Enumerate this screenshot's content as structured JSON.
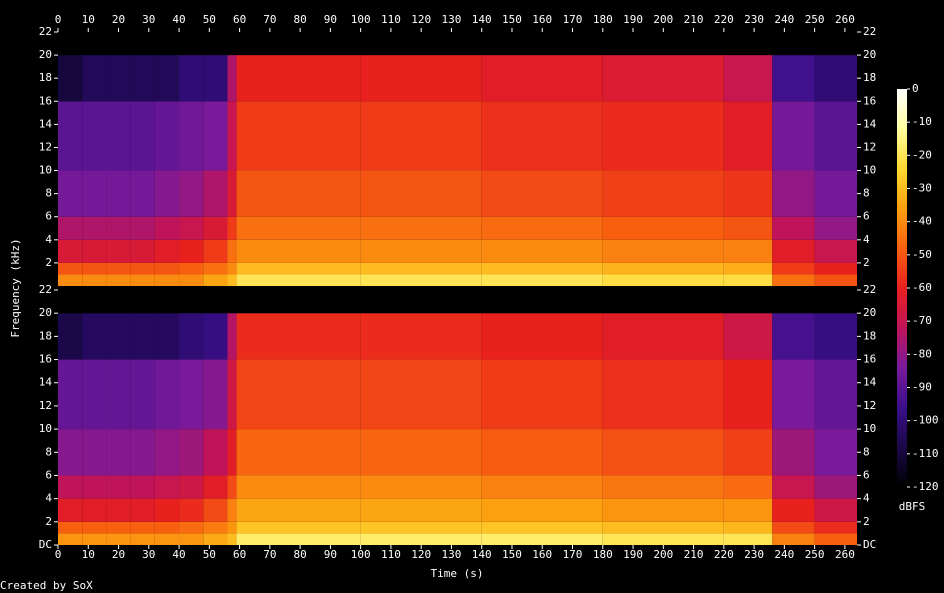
{
  "chart_data": {
    "type": "spectrogram",
    "xlabel": "Time (s)",
    "ylabel": "Frequency (kHz)",
    "footer": "Created by SoX",
    "colorbar_label": "dBFS",
    "xlim": [
      0,
      264
    ],
    "xticks": [
      0,
      10,
      20,
      30,
      40,
      50,
      60,
      70,
      80,
      90,
      100,
      110,
      120,
      130,
      140,
      150,
      160,
      170,
      180,
      190,
      200,
      210,
      220,
      230,
      240,
      250,
      260
    ],
    "ylim": [
      0,
      22
    ],
    "zlim": [
      -120,
      0
    ],
    "zticks": [
      0,
      -10,
      -20,
      -30,
      -40,
      -50,
      -60,
      -70,
      -80,
      -90,
      -100,
      -110,
      -120
    ],
    "colormap": [
      "#000000",
      "#1a0848",
      "#3b0f8c",
      "#7a1a9a",
      "#c0145a",
      "#e8201e",
      "#f86010",
      "#fca010",
      "#ffd830",
      "#ffffa0",
      "#ffffff"
    ],
    "time_edges": [
      0,
      8,
      16,
      24,
      32,
      40,
      48,
      56,
      59,
      100,
      140,
      180,
      220,
      236,
      250,
      264
    ],
    "freq_edges": [
      0,
      1,
      2,
      4,
      6,
      10,
      16,
      20,
      22
    ],
    "channels": [
      {
        "yticks": [
          2,
          4,
          6,
          8,
          10,
          12,
          14,
          16,
          18,
          20,
          22
        ],
        "values": [
          [
            -40,
            -40,
            -40,
            -40,
            -40,
            -40,
            -35,
            -30,
            -20,
            -20,
            -20,
            -22,
            -22,
            -45,
            -50
          ],
          [
            -50,
            -50,
            -50,
            -50,
            -50,
            -48,
            -45,
            -40,
            -30,
            -30,
            -30,
            -32,
            -33,
            -55,
            -60
          ],
          [
            -65,
            -65,
            -65,
            -65,
            -62,
            -60,
            -55,
            -45,
            -40,
            -40,
            -40,
            -42,
            -42,
            -62,
            -70
          ],
          [
            -75,
            -75,
            -75,
            -75,
            -72,
            -70,
            -65,
            -55,
            -45,
            -45,
            -46,
            -48,
            -50,
            -72,
            -80
          ],
          [
            -85,
            -85,
            -85,
            -85,
            -82,
            -80,
            -75,
            -65,
            -50,
            -50,
            -52,
            -54,
            -56,
            -80,
            -85
          ],
          [
            -90,
            -90,
            -90,
            -90,
            -88,
            -86,
            -84,
            -70,
            -55,
            -55,
            -57,
            -58,
            -62,
            -85,
            -90
          ],
          [
            -110,
            -105,
            -105,
            -105,
            -105,
            -100,
            -100,
            -75,
            -60,
            -60,
            -62,
            -64,
            -70,
            -95,
            -100
          ],
          [
            -120,
            -120,
            -120,
            -120,
            -120,
            -120,
            -120,
            -120,
            -120,
            -120,
            -120,
            -120,
            -120,
            -120,
            -120
          ]
        ]
      },
      {
        "yticks": [
          {
            "value": 0,
            "label": "DC"
          },
          2,
          4,
          6,
          8,
          10,
          12,
          14,
          16,
          18,
          20,
          22
        ],
        "values": [
          [
            -38,
            -38,
            -38,
            -38,
            -38,
            -38,
            -34,
            -30,
            -18,
            -18,
            -18,
            -20,
            -20,
            -42,
            -48
          ],
          [
            -48,
            -48,
            -48,
            -48,
            -48,
            -46,
            -43,
            -38,
            -28,
            -28,
            -28,
            -30,
            -31,
            -52,
            -58
          ],
          [
            -62,
            -62,
            -62,
            -62,
            -60,
            -58,
            -52,
            -42,
            -35,
            -35,
            -36,
            -38,
            -38,
            -60,
            -68
          ],
          [
            -72,
            -72,
            -72,
            -72,
            -70,
            -68,
            -62,
            -52,
            -40,
            -40,
            -42,
            -44,
            -46,
            -70,
            -78
          ],
          [
            -82,
            -82,
            -82,
            -82,
            -80,
            -78,
            -72,
            -62,
            -47,
            -47,
            -49,
            -51,
            -54,
            -78,
            -84
          ],
          [
            -88,
            -88,
            -88,
            -88,
            -86,
            -84,
            -82,
            -68,
            -53,
            -53,
            -55,
            -57,
            -60,
            -84,
            -88
          ],
          [
            -108,
            -104,
            -104,
            -104,
            -104,
            -100,
            -98,
            -74,
            -58,
            -58,
            -60,
            -62,
            -68,
            -94,
            -98
          ],
          [
            -120,
            -120,
            -120,
            -120,
            -120,
            -120,
            -120,
            -120,
            -120,
            -120,
            -120,
            -120,
            -120,
            -120,
            -120
          ]
        ]
      }
    ]
  }
}
